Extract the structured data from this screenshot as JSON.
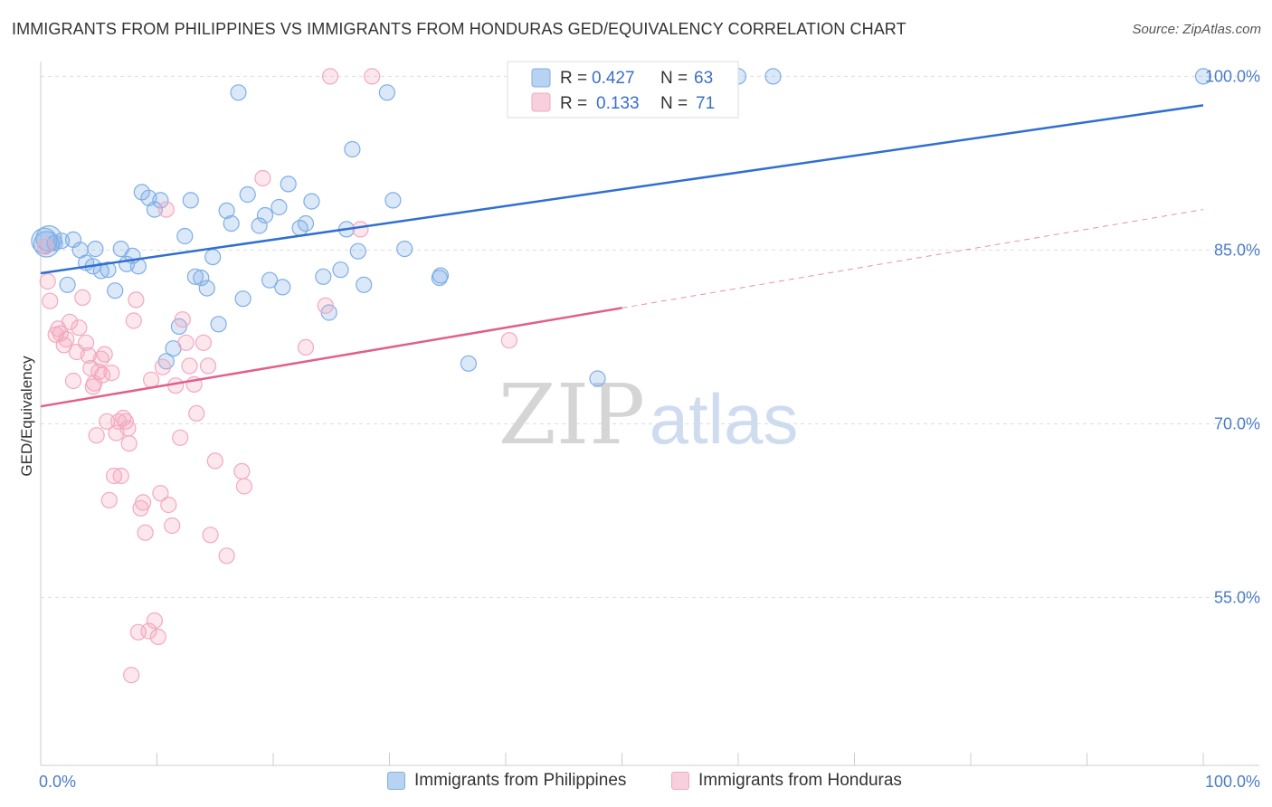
{
  "header": {
    "title": "IMMIGRANTS FROM PHILIPPINES VS IMMIGRANTS FROM HONDURAS GED/EQUIVALENCY CORRELATION CHART",
    "source": "Source: ZipAtlas.com"
  },
  "watermark": {
    "zip": "ZIP",
    "atlas": "atlas"
  },
  "colors": {
    "philippines": "#7eaee6",
    "philippines_line": "#2f6fd0",
    "honduras": "#f3a8c0",
    "honduras_line": "#e0608a",
    "tick_label": "#4a7cc9",
    "grid": "#dddddd"
  },
  "chart_data": {
    "type": "scatter",
    "ylabel": "GED/Equivalency",
    "xlabel": "",
    "x_tick_labels": [
      "0.0%",
      "100.0%"
    ],
    "y_tick_labels": [
      "100.0%",
      "85.0%",
      "70.0%",
      "55.0%"
    ],
    "y_ticks": [
      100,
      85,
      70,
      55
    ],
    "xlim": [
      0,
      100
    ],
    "ylim": [
      40.5,
      100.5
    ],
    "grid": true,
    "legend_position": "top-center",
    "legend": [
      {
        "r_label": "R =",
        "r_value": "0.427",
        "n_label": "N =",
        "n_value": "63"
      },
      {
        "r_label": "R =",
        "r_value": "0.133",
        "n_label": "N =",
        "n_value": "71"
      }
    ],
    "series": [
      {
        "name": "Immigrants from Philippines",
        "trend": {
          "x": [
            0,
            100
          ],
          "y": [
            83.0,
            97.5
          ],
          "dashed_from": null
        },
        "points": [
          [
            0.3,
            85.8
          ],
          [
            0.5,
            85.5
          ],
          [
            0.7,
            86.0
          ],
          [
            1.2,
            85.6
          ],
          [
            1.8,
            85.8
          ],
          [
            2.3,
            82.0
          ],
          [
            2.8,
            85.9
          ],
          [
            3.4,
            85.0
          ],
          [
            3.9,
            83.9
          ],
          [
            4.5,
            83.6
          ],
          [
            4.7,
            85.1
          ],
          [
            5.2,
            83.2
          ],
          [
            5.8,
            83.3
          ],
          [
            6.4,
            81.5
          ],
          [
            6.9,
            85.1
          ],
          [
            7.4,
            83.8
          ],
          [
            7.9,
            84.5
          ],
          [
            8.4,
            83.6
          ],
          [
            8.7,
            90.0
          ],
          [
            9.3,
            89.5
          ],
          [
            9.8,
            88.5
          ],
          [
            10.3,
            89.3
          ],
          [
            10.8,
            75.4
          ],
          [
            11.4,
            76.5
          ],
          [
            11.9,
            78.4
          ],
          [
            12.4,
            86.2
          ],
          [
            12.9,
            89.3
          ],
          [
            13.3,
            82.7
          ],
          [
            13.8,
            82.6
          ],
          [
            14.3,
            81.7
          ],
          [
            14.8,
            84.4
          ],
          [
            15.3,
            78.6
          ],
          [
            16.0,
            88.4
          ],
          [
            16.4,
            87.3
          ],
          [
            17.0,
            98.6
          ],
          [
            17.4,
            80.8
          ],
          [
            17.8,
            89.8
          ],
          [
            18.8,
            87.1
          ],
          [
            19.3,
            88.0
          ],
          [
            19.7,
            82.4
          ],
          [
            20.5,
            88.7
          ],
          [
            20.8,
            81.8
          ],
          [
            21.3,
            90.7
          ],
          [
            22.3,
            86.9
          ],
          [
            22.8,
            87.3
          ],
          [
            23.3,
            89.2
          ],
          [
            24.3,
            82.7
          ],
          [
            24.8,
            79.6
          ],
          [
            25.8,
            83.3
          ],
          [
            26.3,
            86.8
          ],
          [
            26.8,
            93.7
          ],
          [
            27.3,
            84.9
          ],
          [
            27.8,
            82.0
          ],
          [
            29.8,
            98.6
          ],
          [
            30.3,
            89.3
          ],
          [
            31.3,
            85.1
          ],
          [
            34.3,
            82.6
          ],
          [
            34.4,
            82.8
          ],
          [
            36.8,
            75.2
          ],
          [
            47.9,
            73.9
          ],
          [
            60.0,
            100.0
          ],
          [
            63.0,
            100.0
          ],
          [
            100.0,
            100.0
          ]
        ]
      },
      {
        "name": "Immigrants from Honduras",
        "trend": {
          "x": [
            0,
            100
          ],
          "y": [
            71.5,
            88.5
          ],
          "dashed_from": 50
        },
        "points": [
          [
            0.4,
            85.3
          ],
          [
            0.6,
            82.3
          ],
          [
            0.8,
            80.6
          ],
          [
            1.3,
            77.7
          ],
          [
            1.5,
            78.2
          ],
          [
            1.7,
            77.8
          ],
          [
            2.0,
            76.8
          ],
          [
            2.2,
            77.3
          ],
          [
            2.5,
            78.8
          ],
          [
            2.8,
            73.7
          ],
          [
            3.1,
            76.2
          ],
          [
            3.3,
            78.3
          ],
          [
            3.6,
            80.9
          ],
          [
            3.9,
            77.0
          ],
          [
            4.1,
            75.9
          ],
          [
            4.3,
            74.8
          ],
          [
            4.5,
            73.2
          ],
          [
            4.6,
            73.5
          ],
          [
            4.8,
            69.0
          ],
          [
            5.0,
            74.5
          ],
          [
            5.2,
            75.6
          ],
          [
            5.3,
            74.2
          ],
          [
            5.5,
            76.0
          ],
          [
            5.7,
            70.2
          ],
          [
            5.9,
            63.4
          ],
          [
            6.1,
            74.4
          ],
          [
            6.3,
            65.5
          ],
          [
            6.5,
            69.2
          ],
          [
            6.7,
            70.2
          ],
          [
            6.9,
            65.5
          ],
          [
            7.1,
            70.5
          ],
          [
            7.3,
            70.2
          ],
          [
            7.5,
            69.6
          ],
          [
            7.6,
            68.3
          ],
          [
            7.8,
            48.3
          ],
          [
            8.0,
            78.9
          ],
          [
            8.2,
            80.7
          ],
          [
            8.4,
            52.0
          ],
          [
            8.6,
            62.7
          ],
          [
            8.8,
            63.2
          ],
          [
            9.0,
            60.6
          ],
          [
            9.3,
            52.1
          ],
          [
            9.5,
            73.8
          ],
          [
            9.8,
            53.0
          ],
          [
            10.1,
            51.6
          ],
          [
            10.3,
            64.0
          ],
          [
            10.5,
            74.9
          ],
          [
            10.8,
            88.5
          ],
          [
            11.0,
            63.0
          ],
          [
            11.3,
            61.2
          ],
          [
            11.6,
            73.3
          ],
          [
            12.0,
            68.8
          ],
          [
            12.2,
            79.0
          ],
          [
            12.5,
            77.0
          ],
          [
            12.8,
            75.0
          ],
          [
            13.2,
            73.4
          ],
          [
            13.4,
            70.9
          ],
          [
            14.0,
            77.0
          ],
          [
            14.4,
            75.0
          ],
          [
            14.6,
            60.4
          ],
          [
            15.0,
            66.8
          ],
          [
            16.0,
            58.6
          ],
          [
            17.3,
            65.9
          ],
          [
            17.5,
            64.6
          ],
          [
            19.1,
            91.2
          ],
          [
            22.8,
            76.6
          ],
          [
            24.5,
            80.2
          ],
          [
            24.9,
            100.0
          ],
          [
            27.5,
            86.8
          ],
          [
            28.5,
            100.0
          ],
          [
            40.3,
            77.2
          ]
        ]
      }
    ]
  }
}
